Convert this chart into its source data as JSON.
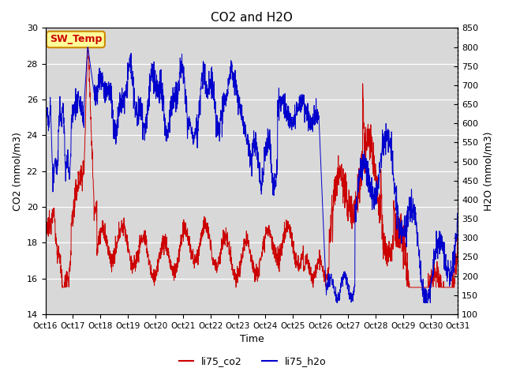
{
  "title": "CO2 and H2O",
  "xlabel": "Time",
  "ylabel_left": "CO2 (mmol/m3)",
  "ylabel_right": "H2O (mmol/m3)",
  "ylim_left": [
    14,
    30
  ],
  "ylim_right": [
    100,
    850
  ],
  "yticks_left": [
    14,
    16,
    18,
    20,
    22,
    24,
    26,
    28,
    30
  ],
  "yticks_right": [
    100,
    150,
    200,
    250,
    300,
    350,
    400,
    450,
    500,
    550,
    600,
    650,
    700,
    750,
    800,
    850
  ],
  "xtick_labels": [
    "Oct 16",
    "Oct 17",
    "Oct 18",
    "Oct 19",
    "Oct 20",
    "Oct 21",
    "Oct 22",
    "Oct 23",
    "Oct 24",
    "Oct 25",
    "Oct 26",
    "Oct 27",
    "Oct 28",
    "Oct 29",
    "Oct 30",
    "Oct 31"
  ],
  "co2_color": "#cc0000",
  "h2o_color": "#0000cc",
  "bg_color": "#d8d8d8",
  "annotation_text": "SW_Temp",
  "annotation_bg": "#ffff99",
  "annotation_edge": "#cc8800",
  "legend_co2": "li75_co2",
  "legend_h2o": "li75_h2o",
  "figsize": [
    6.4,
    4.8
  ],
  "dpi": 100
}
